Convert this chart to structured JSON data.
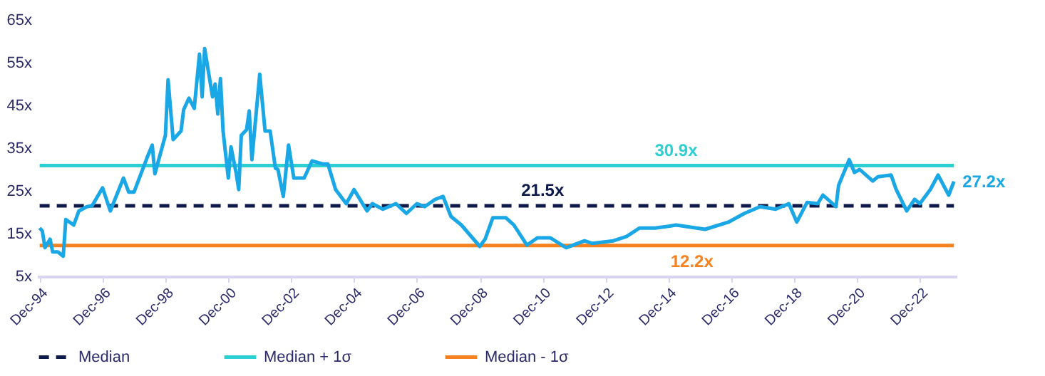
{
  "chart_data": {
    "type": "line",
    "legend": "bottom",
    "grid": false,
    "xlim": [
      "1994-11",
      "2024-02"
    ],
    "ylim": [
      5,
      65
    ],
    "yticks": [
      {
        "value": 5,
        "label": "5x"
      },
      {
        "value": 15,
        "label": "15x"
      },
      {
        "value": 25,
        "label": "25x"
      },
      {
        "value": 35,
        "label": "35x"
      },
      {
        "value": 45,
        "label": "45x"
      },
      {
        "value": 55,
        "label": "55x"
      },
      {
        "value": 65,
        "label": "65x"
      }
    ],
    "xticks": [
      {
        "value": "1994-12",
        "label": "Dec-94"
      },
      {
        "value": "1996-12",
        "label": "Dec-96"
      },
      {
        "value": "1998-12",
        "label": "Dec-98"
      },
      {
        "value": "2000-12",
        "label": "Dec-00"
      },
      {
        "value": "2002-12",
        "label": "Dec-02"
      },
      {
        "value": "2004-12",
        "label": "Dec-04"
      },
      {
        "value": "2006-12",
        "label": "Dec-06"
      },
      {
        "value": "2008-12",
        "label": "Dec-08"
      },
      {
        "value": "2010-12",
        "label": "Dec-10"
      },
      {
        "value": "2012-12",
        "label": "Dec-12"
      },
      {
        "value": "2014-12",
        "label": "Dec-14"
      },
      {
        "value": "2016-12",
        "label": "Dec-16"
      },
      {
        "value": "2018-12",
        "label": "Dec-18"
      },
      {
        "value": "2020-12",
        "label": "Dec-20"
      },
      {
        "value": "2022-12",
        "label": "Dec-22"
      }
    ],
    "series": [
      {
        "color": "#1aa7e6",
        "line_style": "solid",
        "x": [
          "1994-12",
          "1995-01",
          "1995-02",
          "1995-04",
          "1995-05",
          "1995-07",
          "1995-09",
          "1995-10",
          "1996-01",
          "1996-03",
          "1996-06",
          "1996-08",
          "1996-12",
          "1997-03",
          "1997-08",
          "1997-10",
          "1997-12",
          "1998-05",
          "1998-07",
          "1998-08",
          "1998-12",
          "1999-01",
          "1999-03",
          "1999-06",
          "1999-07",
          "1999-09",
          "1999-11",
          "2000-01",
          "2000-02",
          "2000-03",
          "2000-06",
          "2000-07",
          "2000-08",
          "2000-09",
          "2000-10",
          "2000-12",
          "2001-01",
          "2001-03",
          "2001-04",
          "2001-05",
          "2001-07",
          "2001-08",
          "2001-09",
          "2001-12",
          "2002-02",
          "2002-04",
          "2002-06",
          "2002-07",
          "2002-09",
          "2002-11",
          "2003-01",
          "2003-05",
          "2003-08",
          "2003-12",
          "2004-02",
          "2004-05",
          "2004-09",
          "2004-12",
          "2005-05",
          "2005-07",
          "2005-11",
          "2006-04",
          "2006-08",
          "2006-12",
          "2007-03",
          "2007-07",
          "2007-10",
          "2008-01",
          "2008-05",
          "2008-12",
          "2009-02",
          "2009-05",
          "2009-10",
          "2010-01",
          "2010-06",
          "2010-10",
          "2011-03",
          "2011-09",
          "2012-04",
          "2012-07",
          "2013-03",
          "2013-08",
          "2014-01",
          "2014-07",
          "2014-12",
          "2015-03",
          "2016-02",
          "2016-11",
          "2017-05",
          "2017-11",
          "2018-05",
          "2018-10",
          "2019-01",
          "2019-05",
          "2019-09",
          "2019-11",
          "2020-04",
          "2020-05",
          "2020-09",
          "2020-11",
          "2021-01",
          "2021-06",
          "2021-08",
          "2022-01",
          "2022-03",
          "2022-07",
          "2022-10",
          "2022-12",
          "2023-04",
          "2023-07",
          "2023-11",
          "2024-01"
        ],
        "values": [
          16.3,
          15.6,
          11.7,
          13.7,
          10.7,
          10.7,
          9.7,
          18.3,
          17,
          20.3,
          21.3,
          21.5,
          25.7,
          20.3,
          28,
          24.7,
          24.7,
          32.7,
          35.7,
          29,
          38,
          51,
          37,
          39,
          44,
          46.7,
          44.3,
          57,
          47,
          58.3,
          47,
          50,
          43,
          51.3,
          39,
          28,
          35.3,
          29.3,
          25.3,
          38,
          39.3,
          43.7,
          32.3,
          52.3,
          39,
          39,
          30.3,
          30,
          23.7,
          35.7,
          28,
          28,
          32,
          31.3,
          31.3,
          25.3,
          22,
          25.3,
          20.3,
          22,
          20.7,
          22,
          19.7,
          22,
          21.3,
          23,
          23.7,
          19,
          17,
          12,
          13.7,
          18.7,
          18.7,
          17,
          12.3,
          14,
          14,
          11.7,
          13.3,
          12.7,
          13.3,
          14.3,
          16.3,
          16.3,
          16.7,
          17,
          16,
          17.7,
          19.7,
          21.3,
          20.7,
          22,
          17.7,
          22.3,
          22,
          24,
          21.3,
          26.3,
          32.3,
          29.3,
          30,
          27.3,
          28.3,
          28.7,
          25.3,
          20.3,
          23,
          22,
          25.3,
          28.7,
          24,
          27.2
        ]
      },
      {
        "name": "Median",
        "color": "#0d1a4a",
        "line_style": "dashed",
        "x": [
          "1994-12",
          "2024-01"
        ],
        "values": [
          21.5,
          21.5
        ]
      },
      {
        "name": "Median + 1σ",
        "color": "#2ccfd2",
        "line_style": "solid",
        "x": [
          "1994-12",
          "2024-01"
        ],
        "values": [
          30.9,
          30.9
        ]
      },
      {
        "name": "Median - 1σ",
        "color": "#f5821f",
        "line_style": "solid",
        "x": [
          "1994-12",
          "2024-01"
        ],
        "values": [
          12.2,
          12.2
        ]
      }
    ],
    "annotations": [
      {
        "text": "30.9x",
        "x": "2015-03",
        "y": 30.9
      },
      {
        "text": "21.5x",
        "x": "2010-12",
        "y": 21.5
      },
      {
        "text": "12.2x",
        "x": "2015-09",
        "y": 12.2
      },
      {
        "text": "27.2x",
        "x": "2024-01",
        "y": 27.2
      }
    ]
  }
}
